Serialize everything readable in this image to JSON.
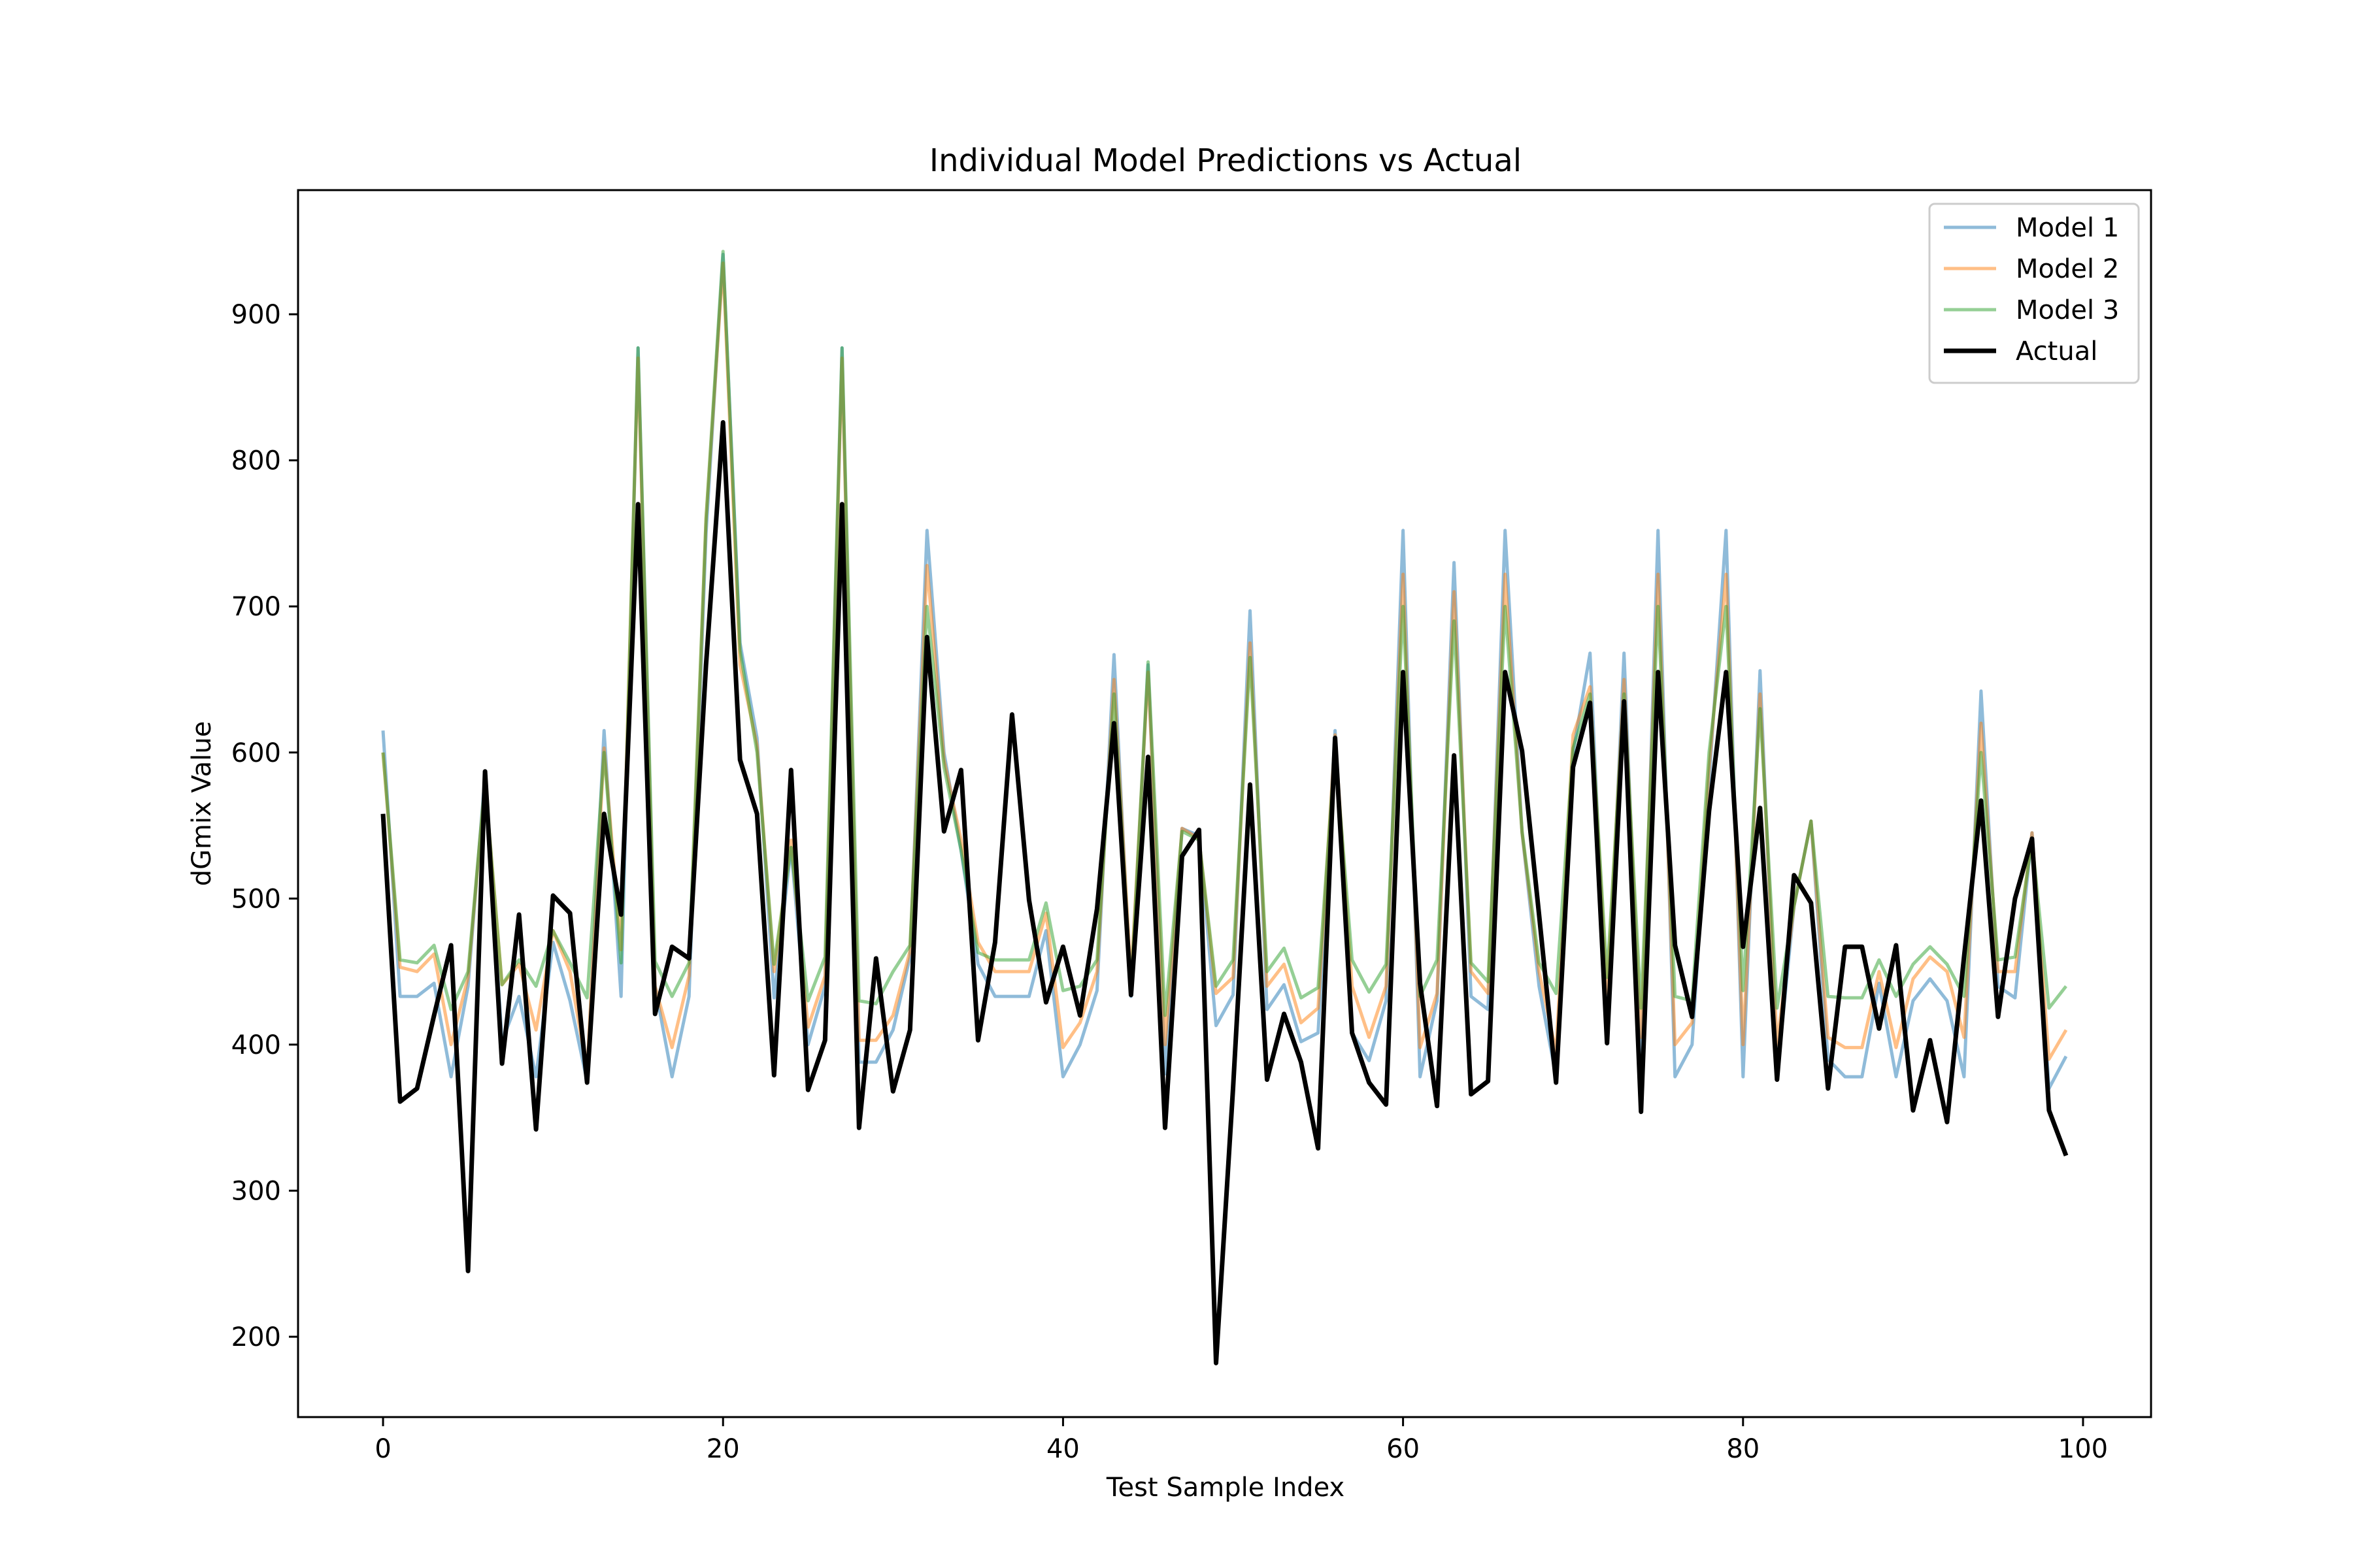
{
  "chart_data": {
    "type": "line",
    "title": "Individual Model Predictions vs Actual",
    "xlabel": "Test Sample Index",
    "ylabel": "dGmix Value",
    "xlim": [
      -5,
      104
    ],
    "ylim": [
      145,
      985
    ],
    "xticks": [
      0,
      20,
      40,
      60,
      80,
      100
    ],
    "yticks": [
      200,
      300,
      400,
      500,
      600,
      700,
      800,
      900
    ],
    "grid": false,
    "legend_position": "top-right",
    "series": [
      {
        "name": "Model 1",
        "color": "#1f77b4",
        "opacity": 0.5,
        "values": [
          615,
          433,
          433,
          442,
          378,
          440,
          585,
          402,
          433,
          378,
          470,
          430,
          375,
          615,
          433,
          877,
          440,
          378,
          433,
          750,
          941,
          675,
          610,
          432,
          535,
          400,
          440,
          877,
          388,
          388,
          410,
          460,
          752,
          600,
          533,
          455,
          433,
          433,
          433,
          478,
          378,
          400,
          437,
          667,
          433,
          660,
          380,
          548,
          543,
          413,
          434,
          697,
          424,
          441,
          402,
          408,
          615,
          408,
          389,
          430,
          752,
          378,
          430,
          730,
          433,
          424,
          752,
          545,
          440,
          378,
          600,
          668,
          410,
          668,
          378,
          752,
          378,
          400,
          580,
          752,
          378,
          656,
          378,
          495,
          553,
          390,
          378,
          378,
          442,
          378,
          430,
          445,
          430,
          378,
          642,
          440,
          432,
          545,
          370,
          392
        ]
      },
      {
        "name": "Model 2",
        "color": "#ff7f0e",
        "opacity": 0.5,
        "values": [
          600,
          453,
          450,
          462,
          400,
          446,
          580,
          441,
          455,
          410,
          478,
          450,
          382,
          603,
          465,
          870,
          440,
          398,
          447,
          760,
          935,
          660,
          605,
          450,
          540,
          412,
          447,
          870,
          403,
          403,
          420,
          464,
          728,
          595,
          540,
          470,
          450,
          450,
          450,
          490,
          398,
          415,
          450,
          650,
          445,
          655,
          400,
          548,
          541,
          435,
          446,
          675,
          440,
          455,
          415,
          425,
          612,
          440,
          405,
          440,
          722,
          398,
          435,
          710,
          450,
          435,
          722,
          545,
          450,
          395,
          612,
          645,
          435,
          650,
          405,
          722,
          400,
          415,
          590,
          722,
          400,
          640,
          400,
          495,
          553,
          405,
          398,
          398,
          450,
          398,
          445,
          460,
          450,
          405,
          620,
          450,
          450,
          545,
          390,
          410
        ]
      },
      {
        "name": "Model 3",
        "color": "#2ca02c",
        "opacity": 0.5,
        "values": [
          600,
          458,
          456,
          468,
          424,
          450,
          580,
          441,
          458,
          440,
          478,
          456,
          432,
          600,
          456,
          877,
          457,
          433,
          456,
          760,
          943,
          670,
          600,
          455,
          535,
          430,
          460,
          877,
          430,
          428,
          450,
          468,
          700,
          590,
          533,
          463,
          458,
          458,
          458,
          497,
          437,
          440,
          458,
          640,
          438,
          662,
          420,
          546,
          540,
          440,
          458,
          665,
          450,
          466,
          432,
          439,
          603,
          458,
          436,
          455,
          700,
          433,
          458,
          690,
          456,
          443,
          700,
          546,
          456,
          435,
          603,
          640,
          446,
          640,
          425,
          700,
          433,
          430,
          600,
          700,
          437,
          630,
          425,
          495,
          553,
          433,
          432,
          432,
          458,
          433,
          455,
          467,
          455,
          433,
          600,
          458,
          460,
          540,
          425,
          440
        ]
      },
      {
        "name": "Actual",
        "color": "#000000",
        "opacity": 1.0,
        "values": [
          558,
          361,
          370,
          420,
          468,
          245,
          587,
          387,
          489,
          342,
          502,
          490,
          374,
          558,
          489,
          770,
          421,
          467,
          459,
          660,
          826,
          595,
          558,
          379,
          588,
          369,
          403,
          770,
          343,
          459,
          368,
          410,
          679,
          546,
          588,
          403,
          470,
          626,
          499,
          429,
          467,
          420,
          493,
          620,
          434,
          597,
          343,
          529,
          547,
          182,
          370,
          578,
          376,
          421,
          388,
          329,
          610,
          408,
          374,
          359,
          655,
          442,
          358,
          598,
          366,
          375,
          655,
          601,
          489,
          374,
          590,
          634,
          401,
          635,
          354,
          655,
          468,
          419,
          560,
          655,
          467,
          562,
          376,
          516,
          497,
          370,
          467,
          467,
          411,
          468,
          355,
          403,
          347,
          460,
          567,
          419,
          500,
          541,
          355,
          324
        ]
      }
    ]
  }
}
